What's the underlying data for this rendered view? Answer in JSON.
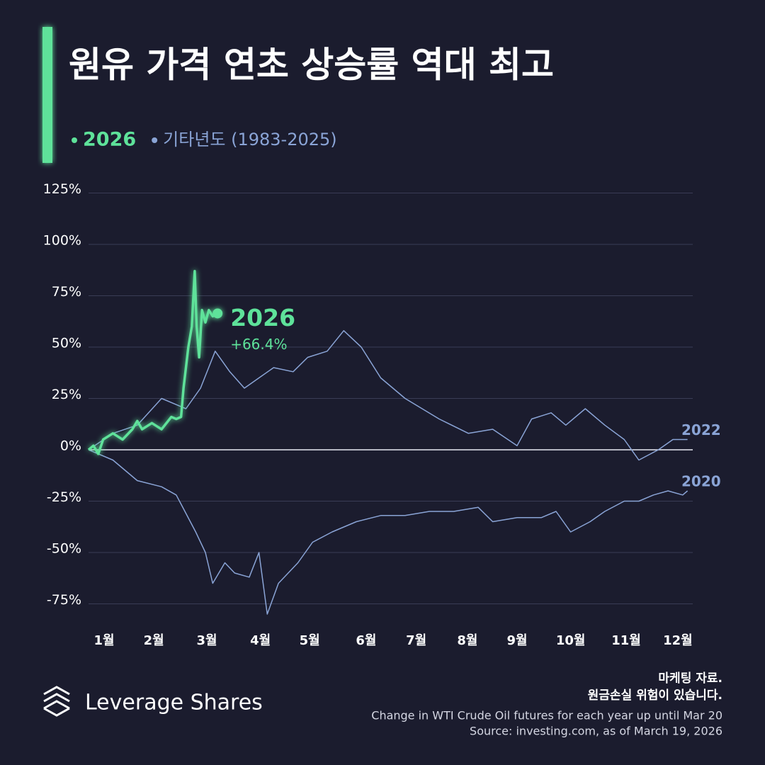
{
  "chart_data": {
    "type": "line",
    "title": "원유 가격 연초 상승률 역대 최고",
    "legend": [
      {
        "name": "2026",
        "color": "#5ee29a"
      },
      {
        "name": "기타년도 (1983-2025)",
        "color": "#8aa4d6"
      }
    ],
    "xlim": [
      0,
      12.5
    ],
    "xticks": [
      {
        "value": 0.32,
        "label": "1월"
      },
      {
        "value": 1.34,
        "label": "2월"
      },
      {
        "value": 2.43,
        "label": "3월"
      },
      {
        "value": 3.53,
        "label": "4월"
      },
      {
        "value": 4.54,
        "label": "5월"
      },
      {
        "value": 5.7,
        "label": "6월"
      },
      {
        "value": 6.73,
        "label": "7월"
      },
      {
        "value": 7.78,
        "label": "8월"
      },
      {
        "value": 8.8,
        "label": "9월"
      },
      {
        "value": 9.9,
        "label": "10월"
      },
      {
        "value": 11.04,
        "label": "11월"
      },
      {
        "value": 12.1,
        "label": "12월"
      }
    ],
    "ylim": [
      -85,
      130
    ],
    "yticks": [
      {
        "value": -75,
        "label": "-75%"
      },
      {
        "value": -50,
        "label": "-50%"
      },
      {
        "value": -25,
        "label": "-25%"
      },
      {
        "value": 0,
        "label": "0%"
      },
      {
        "value": 25,
        "label": "25%"
      },
      {
        "value": 50,
        "label": "50%"
      },
      {
        "value": 75,
        "label": "75%"
      },
      {
        "value": 100,
        "label": "100%"
      },
      {
        "value": 125,
        "label": "125%"
      }
    ],
    "grid": true,
    "series": [
      {
        "name": "2026",
        "color": "#5ee29a",
        "x": [
          0,
          0.1,
          0.2,
          0.3,
          0.5,
          0.7,
          0.9,
          1.0,
          1.1,
          1.3,
          1.5,
          1.7,
          1.8,
          1.9,
          1.95,
          2.05,
          2.12,
          2.18,
          2.22,
          2.27,
          2.33,
          2.4,
          2.47,
          2.55,
          2.65
        ],
        "values": [
          0,
          2,
          -2,
          5,
          8,
          5,
          10,
          14,
          10,
          13,
          10,
          16,
          15,
          16,
          30,
          50,
          60,
          87,
          60,
          45,
          68,
          62,
          68,
          65,
          66.4
        ],
        "value_labels": [
          null,
          null,
          null,
          null,
          null,
          null,
          null,
          null,
          null,
          null,
          null,
          null,
          null,
          null,
          null,
          null,
          null,
          null,
          null,
          null,
          null,
          null,
          null,
          null,
          "+66.4%"
        ]
      },
      {
        "name": "2022",
        "color": "#8aa4d6",
        "x": [
          0,
          0.5,
          1.0,
          1.5,
          2.0,
          2.3,
          2.6,
          2.9,
          3.2,
          3.5,
          3.8,
          4.2,
          4.5,
          4.9,
          5.24,
          5.6,
          6.0,
          6.5,
          7.2,
          7.8,
          8.3,
          8.8,
          9.1,
          9.5,
          9.8,
          10.2,
          10.6,
          11.0,
          11.3,
          11.7,
          12.0,
          12.3
        ],
        "values": [
          0,
          8,
          12,
          25,
          20,
          30,
          48,
          38,
          30,
          35,
          40,
          38,
          45,
          48,
          58,
          50,
          35,
          25,
          15,
          8,
          10,
          2,
          15,
          18,
          12,
          20,
          12,
          5,
          -5,
          0,
          5,
          5
        ]
      },
      {
        "name": "2020",
        "color": "#8aa4d6",
        "x": [
          0,
          0.5,
          1.0,
          1.5,
          1.8,
          2.2,
          2.4,
          2.55,
          2.8,
          3.0,
          3.3,
          3.5,
          3.67,
          3.9,
          4.3,
          4.6,
          5.0,
          5.5,
          6.0,
          6.5,
          7.0,
          7.5,
          8.0,
          8.3,
          8.8,
          9.3,
          9.6,
          9.9,
          10.3,
          10.6,
          11.0,
          11.3,
          11.6,
          11.9,
          12.2,
          12.3
        ],
        "values": [
          0,
          -5,
          -15,
          -18,
          -22,
          -40,
          -50,
          -65,
          -55,
          -60,
          -62,
          -50,
          -80,
          -65,
          -55,
          -45,
          -40,
          -35,
          -32,
          -32,
          -30,
          -30,
          -28,
          -35,
          -33,
          -33,
          -30,
          -40,
          -35,
          -30,
          -25,
          -25,
          -22,
          -20,
          -22,
          -20
        ]
      }
    ]
  },
  "footer": {
    "brand": "Leverage Shares",
    "disclaimer": [
      "마케팅 자료.",
      "원금손실 위험이 있습니다."
    ],
    "notes": [
      "Change in WTI Crude Oil futures for each year up until Mar 20",
      "Source: investing.com, as of March 19, 2026"
    ]
  }
}
